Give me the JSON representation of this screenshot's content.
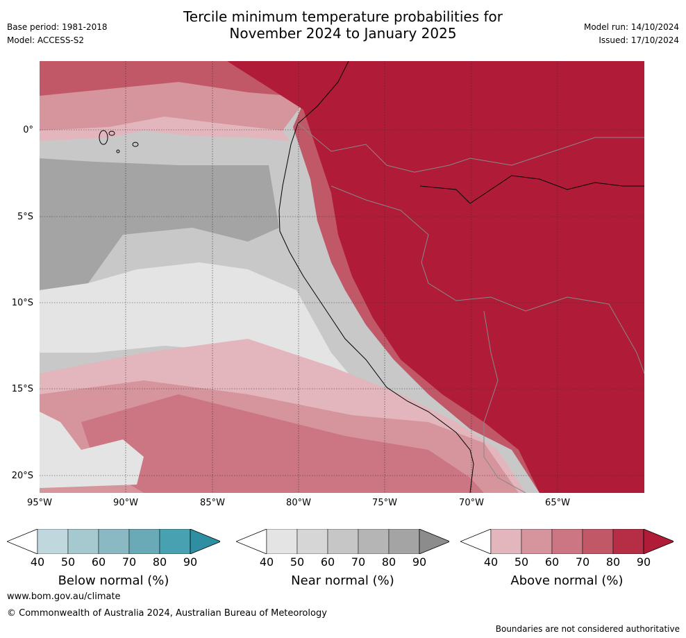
{
  "header": {
    "title_line1": "Tercile minimum temperature probabilities for",
    "title_line2": "November 2024 to January 2025",
    "base_period": "Base period: 1981-2018",
    "model": "Model: ACCESS-S2",
    "model_run": "Model run: 14/10/2024",
    "issued": "Issued: 17/10/2024"
  },
  "map": {
    "lat_labels": [
      "0°",
      "5°S",
      "10°S",
      "15°S",
      "20°S"
    ],
    "lon_labels": [
      "95°W",
      "90°W",
      "85°W",
      "80°W",
      "75°W",
      "70°W",
      "65°W"
    ],
    "lat_values": [
      0,
      -5,
      -10,
      -15,
      -20
    ],
    "lon_values": [
      -95,
      -90,
      -85,
      -80,
      -75,
      -70,
      -65
    ],
    "ocean_default_category": "near normal",
    "land_category": "above normal 90"
  },
  "colorbars": [
    {
      "id": "below",
      "title": "Below normal (%)",
      "ticks": [
        "40",
        "50",
        "60",
        "70",
        "80",
        "90"
      ],
      "colors": [
        "#ffffff",
        "#bfd7dd",
        "#a6c8cf",
        "#8ab9c4",
        "#6aa9b6",
        "#48a1b0",
        "#2e8fa2"
      ]
    },
    {
      "id": "near",
      "title": "Near normal (%)",
      "ticks": [
        "40",
        "50",
        "60",
        "70",
        "80",
        "90"
      ],
      "colors": [
        "#ffffff",
        "#e4e4e4",
        "#d6d6d6",
        "#c6c6c6",
        "#b5b5b5",
        "#a4a4a4",
        "#8c8c8c"
      ]
    },
    {
      "id": "above",
      "title": "Above normal (%)",
      "ticks": [
        "40",
        "50",
        "60",
        "70",
        "80",
        "90"
      ],
      "colors": [
        "#ffffff",
        "#e3b6bd",
        "#d6949c",
        "#cb7682",
        "#c15868",
        "#b52e45",
        "#b01c38"
      ]
    }
  ],
  "footer": {
    "website": "www.bom.gov.au/climate",
    "copyright": "© Commonwealth of Australia 2024, Australian Bureau of Meteorology",
    "disclaimer": "Boundaries are not considered authoritative"
  }
}
